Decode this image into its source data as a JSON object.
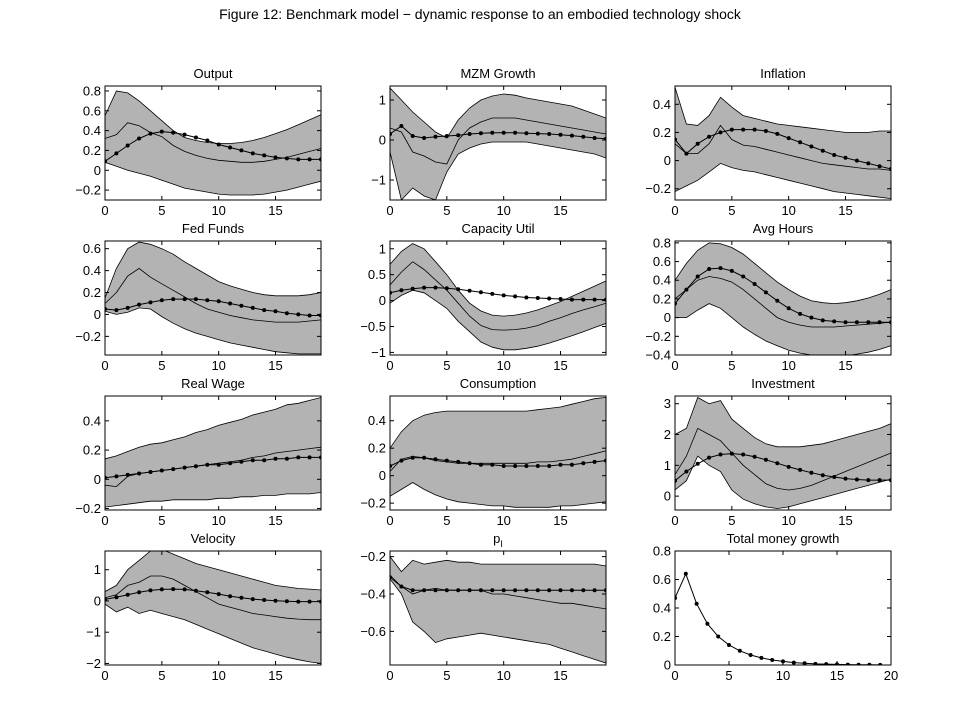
{
  "figure": {
    "title": "Figure 12: Benchmark model − dynamic response to an embodied technology shock"
  },
  "colors": {
    "band_fill": "#b3b3b3",
    "line": "#000000",
    "background": "#ffffff"
  },
  "chart_data": [
    {
      "type": "line",
      "title": "Output",
      "xlim": [
        0,
        19
      ],
      "ylim": [
        -0.3,
        0.85
      ],
      "xticks": [
        "0",
        "5",
        "10",
        "15"
      ],
      "yticks": [
        "-0.2",
        "0",
        "0.2",
        "0.4",
        "0.6",
        "0.8"
      ],
      "upper": [
        0.55,
        0.8,
        0.78,
        0.7,
        0.6,
        0.5,
        0.4,
        0.33,
        0.3,
        0.28,
        0.27,
        0.27,
        0.28,
        0.3,
        0.33,
        0.37,
        0.41,
        0.46,
        0.51,
        0.56
      ],
      "median": [
        0.32,
        0.36,
        0.48,
        0.45,
        0.38,
        0.34,
        0.25,
        0.19,
        0.15,
        0.12,
        0.1,
        0.09,
        0.08,
        0.08,
        0.09,
        0.11,
        0.13,
        0.16,
        0.19,
        0.22
      ],
      "lower": [
        0.08,
        0.04,
        0.0,
        -0.03,
        -0.06,
        -0.1,
        -0.14,
        -0.18,
        -0.2,
        -0.22,
        -0.24,
        -0.25,
        -0.25,
        -0.25,
        -0.24,
        -0.22,
        -0.2,
        -0.17,
        -0.14,
        -0.11
      ],
      "dotted": [
        0.09,
        0.17,
        0.25,
        0.32,
        0.37,
        0.39,
        0.38,
        0.36,
        0.33,
        0.3,
        0.26,
        0.23,
        0.2,
        0.17,
        0.15,
        0.13,
        0.12,
        0.11,
        0.11,
        0.11
      ]
    },
    {
      "type": "line",
      "title": "MZM Growth",
      "xlim": [
        0,
        19
      ],
      "ylim": [
        -1.5,
        1.35
      ],
      "xticks": [
        "0",
        "5",
        "10",
        "15"
      ],
      "yticks": [
        "-1",
        "0",
        "1"
      ],
      "upper": [
        1.3,
        1.0,
        0.7,
        0.45,
        0.2,
        0.05,
        0.5,
        0.8,
        1.0,
        1.1,
        1.15,
        1.12,
        1.05,
        1.0,
        0.95,
        0.9,
        0.85,
        0.75,
        0.65,
        0.55
      ],
      "median": [
        0.3,
        0.2,
        -0.3,
        -0.4,
        -0.55,
        -0.6,
        0.0,
        0.3,
        0.45,
        0.55,
        0.55,
        0.55,
        0.5,
        0.45,
        0.4,
        0.35,
        0.3,
        0.25,
        0.2,
        0.15
      ],
      "lower": [
        -0.3,
        -1.5,
        -1.2,
        -1.4,
        -1.5,
        -0.8,
        -0.35,
        -0.2,
        -0.1,
        -0.05,
        -0.05,
        -0.05,
        -0.05,
        -0.1,
        -0.15,
        -0.2,
        -0.25,
        -0.3,
        -0.35,
        -0.45
      ],
      "dotted": [
        0.15,
        0.35,
        0.1,
        0.05,
        0.08,
        0.1,
        0.12,
        0.15,
        0.17,
        0.18,
        0.18,
        0.18,
        0.17,
        0.16,
        0.15,
        0.13,
        0.11,
        0.08,
        0.05,
        0.03
      ]
    },
    {
      "type": "line",
      "title": "Inflation",
      "xlim": [
        0,
        19
      ],
      "ylim": [
        -0.28,
        0.53
      ],
      "xticks": [
        "0",
        "5",
        "10",
        "15"
      ],
      "yticks": [
        "-0.2",
        "0",
        "0.2",
        "0.4"
      ],
      "upper": [
        0.52,
        0.26,
        0.25,
        0.32,
        0.45,
        0.38,
        0.32,
        0.3,
        0.28,
        0.26,
        0.25,
        0.24,
        0.23,
        0.22,
        0.21,
        0.2,
        0.2,
        0.2,
        0.21,
        0.21
      ],
      "median": [
        0.12,
        0.05,
        0.05,
        0.12,
        0.25,
        0.15,
        0.11,
        0.1,
        0.08,
        0.06,
        0.04,
        0.02,
        0.0,
        -0.02,
        -0.03,
        -0.04,
        -0.05,
        -0.06,
        -0.06,
        -0.07
      ],
      "lower": [
        -0.22,
        -0.18,
        -0.14,
        -0.08,
        -0.02,
        -0.05,
        -0.07,
        -0.08,
        -0.1,
        -0.12,
        -0.14,
        -0.16,
        -0.18,
        -0.2,
        -0.22,
        -0.23,
        -0.24,
        -0.25,
        -0.26,
        -0.27
      ],
      "dotted": [
        0.15,
        0.05,
        0.12,
        0.17,
        0.2,
        0.22,
        0.22,
        0.22,
        0.21,
        0.19,
        0.16,
        0.13,
        0.1,
        0.07,
        0.04,
        0.02,
        0.0,
        -0.02,
        -0.04,
        -0.06
      ]
    },
    {
      "type": "line",
      "title": "Fed Funds",
      "xlim": [
        0,
        19
      ],
      "ylim": [
        -0.37,
        0.67
      ],
      "xticks": [
        "0",
        "5",
        "10",
        "15"
      ],
      "yticks": [
        "-0.2",
        "0",
        "0.2",
        "0.4",
        "0.6"
      ],
      "upper": [
        0.15,
        0.42,
        0.6,
        0.66,
        0.64,
        0.6,
        0.55,
        0.48,
        0.42,
        0.36,
        0.3,
        0.26,
        0.23,
        0.2,
        0.18,
        0.17,
        0.17,
        0.17,
        0.18,
        0.2
      ],
      "median": [
        0.1,
        0.2,
        0.35,
        0.42,
        0.34,
        0.28,
        0.22,
        0.16,
        0.1,
        0.05,
        0.02,
        -0.01,
        -0.03,
        -0.05,
        -0.06,
        -0.07,
        -0.07,
        -0.07,
        -0.06,
        -0.05
      ],
      "lower": [
        0.03,
        0.0,
        0.02,
        0.06,
        0.05,
        -0.02,
        -0.08,
        -0.13,
        -0.17,
        -0.2,
        -0.23,
        -0.26,
        -0.28,
        -0.3,
        -0.32,
        -0.34,
        -0.35,
        -0.36,
        -0.36,
        -0.36
      ],
      "dotted": [
        0.05,
        0.04,
        0.06,
        0.09,
        0.11,
        0.13,
        0.14,
        0.14,
        0.14,
        0.13,
        0.12,
        0.1,
        0.08,
        0.06,
        0.04,
        0.03,
        0.01,
        0.0,
        -0.01,
        -0.01
      ]
    },
    {
      "type": "line",
      "title": "Capacity Util",
      "xlim": [
        0,
        19
      ],
      "ylim": [
        -1.05,
        1.15
      ],
      "xticks": [
        "0",
        "5",
        "10",
        "15"
      ],
      "yticks": [
        "-1",
        "-0.5",
        "0",
        "0.5",
        "1"
      ],
      "upper": [
        0.7,
        0.95,
        1.1,
        1.0,
        0.75,
        0.5,
        0.2,
        -0.05,
        -0.2,
        -0.28,
        -0.3,
        -0.28,
        -0.24,
        -0.18,
        -0.1,
        -0.02,
        0.08,
        0.18,
        0.28,
        0.38
      ],
      "median": [
        0.3,
        0.55,
        0.75,
        0.6,
        0.4,
        0.2,
        -0.05,
        -0.3,
        -0.48,
        -0.56,
        -0.57,
        -0.56,
        -0.53,
        -0.48,
        -0.4,
        -0.33,
        -0.25,
        -0.18,
        -0.12,
        -0.05
      ],
      "lower": [
        -0.05,
        0.1,
        0.2,
        0.15,
        0.0,
        -0.15,
        -0.4,
        -0.6,
        -0.8,
        -0.9,
        -0.95,
        -0.95,
        -0.92,
        -0.88,
        -0.82,
        -0.75,
        -0.68,
        -0.6,
        -0.52,
        -0.44
      ],
      "dotted": [
        0.15,
        0.2,
        0.23,
        0.25,
        0.25,
        0.24,
        0.22,
        0.19,
        0.16,
        0.13,
        0.1,
        0.08,
        0.06,
        0.05,
        0.04,
        0.03,
        0.02,
        0.02,
        0.02,
        0.02
      ]
    },
    {
      "type": "line",
      "title": "Avg Hours",
      "xlim": [
        0,
        19
      ],
      "ylim": [
        -0.4,
        0.82
      ],
      "xticks": [
        "0",
        "5",
        "10",
        "15"
      ],
      "yticks": [
        "-0.4",
        "-0.2",
        "0",
        "0.2",
        "0.4",
        "0.6",
        "0.8"
      ],
      "upper": [
        0.4,
        0.58,
        0.72,
        0.8,
        0.79,
        0.75,
        0.68,
        0.58,
        0.48,
        0.38,
        0.3,
        0.23,
        0.18,
        0.16,
        0.15,
        0.16,
        0.18,
        0.21,
        0.25,
        0.3
      ],
      "median": [
        0.2,
        0.3,
        0.4,
        0.44,
        0.42,
        0.38,
        0.3,
        0.2,
        0.1,
        0.0,
        -0.05,
        -0.08,
        -0.1,
        -0.1,
        -0.1,
        -0.09,
        -0.08,
        -0.07,
        -0.06,
        -0.05
      ],
      "lower": [
        0.0,
        0.0,
        0.08,
        0.15,
        0.1,
        0.0,
        -0.1,
        -0.18,
        -0.25,
        -0.3,
        -0.35,
        -0.38,
        -0.4,
        -0.42,
        -0.42,
        -0.41,
        -0.39,
        -0.37,
        -0.34,
        -0.3
      ],
      "dotted": [
        0.15,
        0.3,
        0.44,
        0.52,
        0.53,
        0.5,
        0.44,
        0.36,
        0.27,
        0.18,
        0.1,
        0.04,
        0.0,
        -0.03,
        -0.04,
        -0.05,
        -0.05,
        -0.05,
        -0.05,
        -0.05
      ]
    },
    {
      "type": "line",
      "title": "Real Wage",
      "xlim": [
        0,
        19
      ],
      "ylim": [
        -0.21,
        0.57
      ],
      "xticks": [
        "0",
        "5",
        "10",
        "15"
      ],
      "yticks": [
        "-0.2",
        "0",
        "0.2",
        "0.4"
      ],
      "upper": [
        0.14,
        0.16,
        0.19,
        0.22,
        0.24,
        0.25,
        0.27,
        0.29,
        0.32,
        0.34,
        0.37,
        0.39,
        0.41,
        0.44,
        0.46,
        0.48,
        0.51,
        0.52,
        0.54,
        0.56
      ],
      "median": [
        -0.04,
        -0.05,
        0.02,
        0.04,
        0.05,
        0.06,
        0.07,
        0.08,
        0.09,
        0.1,
        0.11,
        0.12,
        0.13,
        0.15,
        0.16,
        0.18,
        0.19,
        0.2,
        0.21,
        0.22
      ],
      "lower": [
        -0.19,
        -0.18,
        -0.17,
        -0.16,
        -0.15,
        -0.15,
        -0.14,
        -0.14,
        -0.14,
        -0.14,
        -0.13,
        -0.13,
        -0.12,
        -0.12,
        -0.11,
        -0.11,
        -0.1,
        -0.1,
        -0.1,
        -0.09
      ],
      "dotted": [
        0.01,
        0.02,
        0.03,
        0.04,
        0.05,
        0.06,
        0.07,
        0.08,
        0.09,
        0.1,
        0.1,
        0.11,
        0.12,
        0.13,
        0.13,
        0.14,
        0.14,
        0.15,
        0.15,
        0.15
      ]
    },
    {
      "type": "line",
      "title": "Consumption",
      "xlim": [
        0,
        19
      ],
      "ylim": [
        -0.25,
        0.58
      ],
      "xticks": [
        "0",
        "5",
        "10",
        "15"
      ],
      "yticks": [
        "-0.2",
        "0",
        "0.2",
        "0.4"
      ],
      "upper": [
        0.2,
        0.32,
        0.4,
        0.44,
        0.46,
        0.47,
        0.47,
        0.47,
        0.47,
        0.47,
        0.47,
        0.47,
        0.47,
        0.48,
        0.49,
        0.5,
        0.52,
        0.54,
        0.56,
        0.57
      ],
      "median": [
        0.03,
        0.12,
        0.14,
        0.13,
        0.11,
        0.1,
        0.09,
        0.09,
        0.09,
        0.09,
        0.09,
        0.09,
        0.09,
        0.1,
        0.1,
        0.11,
        0.12,
        0.14,
        0.16,
        0.18
      ],
      "lower": [
        -0.15,
        -0.1,
        -0.05,
        -0.1,
        -0.14,
        -0.17,
        -0.19,
        -0.2,
        -0.21,
        -0.22,
        -0.22,
        -0.23,
        -0.23,
        -0.23,
        -0.23,
        -0.22,
        -0.22,
        -0.21,
        -0.2,
        -0.19
      ],
      "dotted": [
        0.07,
        0.11,
        0.13,
        0.13,
        0.12,
        0.11,
        0.1,
        0.09,
        0.08,
        0.08,
        0.07,
        0.07,
        0.07,
        0.07,
        0.07,
        0.08,
        0.08,
        0.09,
        0.1,
        0.11
      ]
    },
    {
      "type": "line",
      "title": "Investment",
      "xlim": [
        0,
        19
      ],
      "ylim": [
        -0.45,
        3.25
      ],
      "xticks": [
        "0",
        "5",
        "10",
        "15"
      ],
      "yticks": [
        "0",
        "1",
        "2",
        "3"
      ],
      "upper": [
        2.0,
        2.2,
        3.2,
        3.0,
        3.1,
        2.5,
        2.2,
        1.9,
        1.7,
        1.6,
        1.6,
        1.6,
        1.65,
        1.7,
        1.8,
        1.9,
        2.0,
        2.1,
        2.2,
        2.35
      ],
      "median": [
        0.7,
        1.3,
        2.2,
        2.0,
        1.8,
        1.4,
        1.0,
        0.7,
        0.4,
        0.25,
        0.2,
        0.25,
        0.35,
        0.5,
        0.65,
        0.8,
        0.95,
        1.1,
        1.25,
        1.4
      ],
      "lower": [
        0.2,
        0.5,
        1.3,
        1.0,
        0.8,
        0.2,
        -0.1,
        -0.25,
        -0.35,
        -0.4,
        -0.35,
        -0.25,
        -0.15,
        -0.05,
        0.05,
        0.15,
        0.25,
        0.35,
        0.45,
        0.55
      ],
      "dotted": [
        0.5,
        0.8,
        1.05,
        1.25,
        1.35,
        1.38,
        1.35,
        1.28,
        1.18,
        1.07,
        0.95,
        0.85,
        0.76,
        0.68,
        0.62,
        0.57,
        0.54,
        0.52,
        0.52,
        0.52
      ]
    },
    {
      "type": "line",
      "title": "Velocity",
      "xlim": [
        0,
        19
      ],
      "ylim": [
        -2.05,
        1.6
      ],
      "xticks": [
        "0",
        "5",
        "10",
        "15"
      ],
      "yticks": [
        "-2",
        "-1",
        "0",
        "1"
      ],
      "upper": [
        0.3,
        0.5,
        1.0,
        1.3,
        1.6,
        1.65,
        1.5,
        1.35,
        1.2,
        1.1,
        1.0,
        0.9,
        0.8,
        0.7,
        0.6,
        0.5,
        0.45,
        0.4,
        0.38,
        0.35
      ],
      "median": [
        0.1,
        0.2,
        0.5,
        0.6,
        0.8,
        0.8,
        0.7,
        0.5,
        0.3,
        0.1,
        -0.1,
        -0.2,
        -0.3,
        -0.4,
        -0.45,
        -0.5,
        -0.55,
        -0.58,
        -0.6,
        -0.6
      ],
      "lower": [
        -0.1,
        -0.35,
        -0.2,
        -0.4,
        -0.3,
        -0.4,
        -0.5,
        -0.6,
        -0.75,
        -0.9,
        -1.05,
        -1.2,
        -1.35,
        -1.5,
        -1.6,
        -1.7,
        -1.8,
        -1.88,
        -1.95,
        -2.0
      ],
      "dotted": [
        0.05,
        0.12,
        0.2,
        0.28,
        0.34,
        0.37,
        0.38,
        0.37,
        0.33,
        0.28,
        0.22,
        0.15,
        0.1,
        0.06,
        0.03,
        0.01,
        -0.01,
        -0.02,
        -0.02,
        -0.02
      ]
    },
    {
      "type": "line",
      "title": "p",
      "title_subscript": "I",
      "xlim": [
        0,
        19
      ],
      "ylim": [
        -0.78,
        -0.17
      ],
      "xticks": [
        "0",
        "5",
        "10",
        "15"
      ],
      "yticks": [
        "-0.6",
        "-0.4",
        "-0.2"
      ],
      "upper": [
        -0.2,
        -0.28,
        -0.22,
        -0.24,
        -0.23,
        -0.22,
        -0.23,
        -0.23,
        -0.24,
        -0.24,
        -0.24,
        -0.24,
        -0.24,
        -0.24,
        -0.24,
        -0.24,
        -0.24,
        -0.24,
        -0.24,
        -0.25
      ],
      "median": [
        -0.3,
        -0.36,
        -0.4,
        -0.38,
        -0.37,
        -0.38,
        -0.38,
        -0.38,
        -0.38,
        -0.4,
        -0.4,
        -0.41,
        -0.42,
        -0.43,
        -0.44,
        -0.45,
        -0.45,
        -0.46,
        -0.47,
        -0.48
      ],
      "lower": [
        -0.32,
        -0.4,
        -0.55,
        -0.6,
        -0.66,
        -0.64,
        -0.63,
        -0.62,
        -0.61,
        -0.62,
        -0.63,
        -0.64,
        -0.65,
        -0.66,
        -0.67,
        -0.69,
        -0.71,
        -0.73,
        -0.75,
        -0.77
      ],
      "dotted": [
        -0.31,
        -0.36,
        -0.38,
        -0.38,
        -0.38,
        -0.38,
        -0.38,
        -0.38,
        -0.38,
        -0.38,
        -0.38,
        -0.38,
        -0.38,
        -0.38,
        -0.38,
        -0.38,
        -0.38,
        -0.38,
        -0.38,
        -0.38
      ]
    },
    {
      "type": "line",
      "title": "Total money growth",
      "xlim": [
        0,
        20
      ],
      "ylim": [
        0,
        0.8
      ],
      "xticks": [
        "0",
        "5",
        "10",
        "15",
        "20"
      ],
      "yticks": [
        "0",
        "0.2",
        "0.4",
        "0.6",
        "0.8"
      ],
      "values": [
        0.47,
        0.64,
        0.43,
        0.29,
        0.2,
        0.14,
        0.1,
        0.07,
        0.05,
        0.035,
        0.025,
        0.017,
        0.012,
        0.008,
        0.006,
        0.004,
        0.003,
        0.002,
        0.002,
        0.001
      ]
    }
  ]
}
